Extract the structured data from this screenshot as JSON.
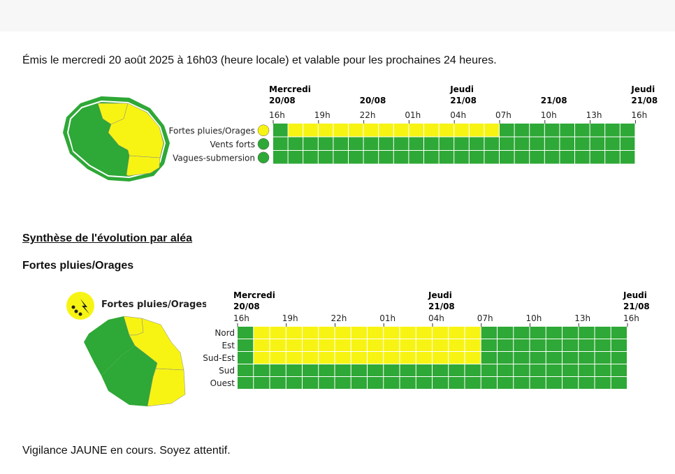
{
  "issued": "Émis le mercredi 20 août 2025 à 16h03 (heure locale) et valable pour les prochaines 24 heures.",
  "colors": {
    "green": "#2ea836",
    "yellow": "#f7f414"
  },
  "overview": {
    "day_headers": [
      {
        "day": "Mercredi",
        "date": "20/08",
        "hour_index": 0
      },
      {
        "day": "",
        "date": "20/08",
        "hour_index": 6
      },
      {
        "day": "Jeudi",
        "date": "21/08",
        "hour_index": 12
      },
      {
        "day": "",
        "date": "21/08",
        "hour_index": 18
      },
      {
        "day": "Jeudi",
        "date": "21/08",
        "hour_index": 24
      }
    ],
    "hours": [
      "16h",
      "19h",
      "22h",
      "01h",
      "04h",
      "07h",
      "10h",
      "13h",
      "16h"
    ],
    "rows": [
      {
        "label": "Fortes pluies/Orages",
        "icon": "rain-storm-icon",
        "levels": "GYYYYYYYYYYYYYYGGGGGGGGG"
      },
      {
        "label": "Vents forts",
        "icon": "wind-icon",
        "levels": "GGGGGGGGGGGGGGGGGGGGGGGG"
      },
      {
        "label": "Vagues-submersion",
        "icon": "wave-icon",
        "levels": "GGGGGGGGGGGGGGGGGGGGGGGG"
      }
    ]
  },
  "synthesis_title": "Synthèse de l'évolution par aléa",
  "hazard": {
    "title": "Fortes pluies/Orages",
    "legend_label": "Fortes pluies/Orages",
    "day_headers": [
      {
        "day": "Mercredi",
        "date": "20/08",
        "hour_index": 0
      },
      {
        "day": "Jeudi",
        "date": "21/08",
        "hour_index": 12
      },
      {
        "day": "Jeudi",
        "date": "21/08",
        "hour_index": 24
      }
    ],
    "hours": [
      "16h",
      "19h",
      "22h",
      "01h",
      "04h",
      "07h",
      "10h",
      "13h",
      "16h"
    ],
    "rows": [
      {
        "label": "Nord",
        "levels": "GYYYYYYYYYYYYYYGGGGGGGGG"
      },
      {
        "label": "Est",
        "levels": "GYYYYYYYYYYYYYYGGGGGGGGG"
      },
      {
        "label": "Sud-Est",
        "levels": "GYYYYYYYYYYYYYYGGGGGGGGG"
      },
      {
        "label": "Sud",
        "levels": "GGGGGGGGGGGGGGGGGGGGGGGG"
      },
      {
        "label": "Ouest",
        "levels": "GGGGGGGGGGGGGGGGGGGGGGGG"
      }
    ]
  },
  "status": "Vigilance JAUNE en cours. Soyez attentif."
}
